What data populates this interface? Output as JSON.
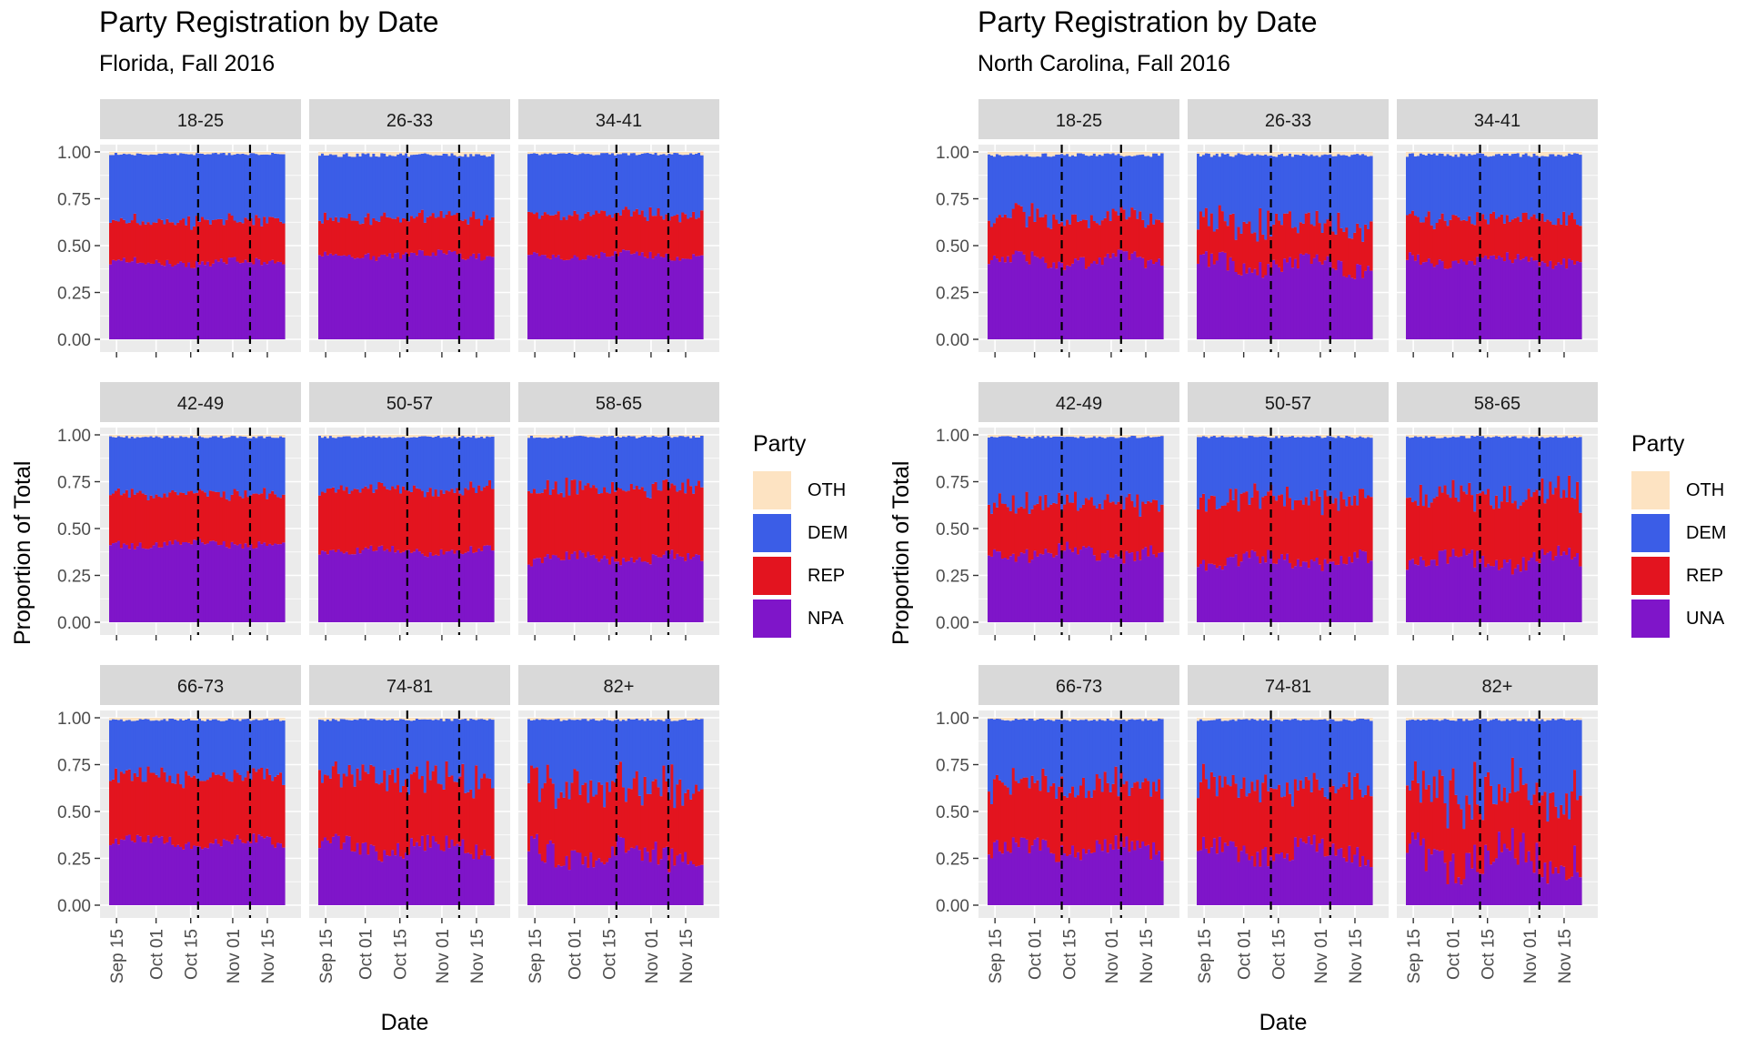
{
  "colors": {
    "OTH": "#fde3c2",
    "DEM": "#3b5de7",
    "REP": "#e3141f",
    "NPA": "#7f15c9",
    "UNA": "#7f15c9",
    "panel_bg": "#ebebeb",
    "strip_bg": "#d9d9d9",
    "grid": "#ffffff"
  },
  "chart_data": [
    {
      "type": "bar",
      "stacking": "fill",
      "title": "Party Registration by Date",
      "subtitle": "Florida, Fall 2016",
      "xlabel": "Date",
      "ylabel": "Proportion of Total",
      "ylim": [
        0,
        1
      ],
      "y_ticks": [
        "0.00",
        "0.25",
        "0.50",
        "0.75",
        "1.00"
      ],
      "x_ticks": [
        "Sep 15",
        "Oct 01",
        "Oct 15",
        "Nov 01",
        "Nov 15"
      ],
      "date_range": [
        "2016-09-12",
        "2016-11-22"
      ],
      "vlines": [
        "2016-10-18",
        "2016-11-08"
      ],
      "legend": {
        "title": "Party",
        "entries": [
          "OTH",
          "DEM",
          "REP",
          "NPA"
        ],
        "placement": "right"
      },
      "facets": [
        {
          "label": "18-25",
          "base": 0.41,
          "rep": 0.22,
          "oth": 0.01,
          "noise": 0.02
        },
        {
          "label": "26-33",
          "base": 0.45,
          "rep": 0.2,
          "oth": 0.015,
          "noise": 0.02
        },
        {
          "label": "34-41",
          "base": 0.45,
          "rep": 0.22,
          "oth": 0.01,
          "noise": 0.02
        },
        {
          "label": "42-49",
          "base": 0.42,
          "rep": 0.27,
          "oth": 0.01,
          "noise": 0.02
        },
        {
          "label": "50-57",
          "base": 0.38,
          "rep": 0.33,
          "oth": 0.01,
          "noise": 0.02
        },
        {
          "label": "58-65",
          "base": 0.34,
          "rep": 0.37,
          "oth": 0.01,
          "noise": 0.03
        },
        {
          "label": "66-73",
          "base": 0.34,
          "rep": 0.35,
          "oth": 0.01,
          "noise": 0.03
        },
        {
          "label": "74-81",
          "base": 0.31,
          "rep": 0.37,
          "oth": 0.01,
          "noise": 0.05
        },
        {
          "label": "82+",
          "base": 0.28,
          "rep": 0.36,
          "oth": 0.01,
          "noise": 0.07
        }
      ]
    },
    {
      "type": "bar",
      "stacking": "fill",
      "title": "Party Registration by Date",
      "subtitle": "North Carolina, Fall 2016",
      "xlabel": "Date",
      "ylabel": "Proportion of Total",
      "ylim": [
        0,
        1
      ],
      "y_ticks": [
        "0.00",
        "0.25",
        "0.50",
        "0.75",
        "1.00"
      ],
      "x_ticks": [
        "Sep 15",
        "Oct 01",
        "Oct 15",
        "Nov 01",
        "Nov 15"
      ],
      "date_range": [
        "2016-09-12",
        "2016-11-22"
      ],
      "vlines": [
        "2016-10-12",
        "2016-11-05"
      ],
      "legend": {
        "title": "Party",
        "entries": [
          "OTH",
          "DEM",
          "REP",
          "UNA"
        ],
        "placement": "right"
      },
      "facets": [
        {
          "label": "18-25",
          "base": 0.42,
          "rep": 0.22,
          "oth": 0.015,
          "noise": 0.04
        },
        {
          "label": "26-33",
          "base": 0.4,
          "rep": 0.22,
          "oth": 0.015,
          "noise": 0.05
        },
        {
          "label": "34-41",
          "base": 0.42,
          "rep": 0.22,
          "oth": 0.015,
          "noise": 0.03
        },
        {
          "label": "42-49",
          "base": 0.37,
          "rep": 0.27,
          "oth": 0.01,
          "noise": 0.04
        },
        {
          "label": "50-57",
          "base": 0.33,
          "rep": 0.33,
          "oth": 0.01,
          "noise": 0.04
        },
        {
          "label": "58-65",
          "base": 0.33,
          "rep": 0.34,
          "oth": 0.01,
          "noise": 0.05
        },
        {
          "label": "66-73",
          "base": 0.3,
          "rep": 0.34,
          "oth": 0.01,
          "noise": 0.05
        },
        {
          "label": "74-81",
          "base": 0.29,
          "rep": 0.35,
          "oth": 0.01,
          "noise": 0.06
        },
        {
          "label": "82+",
          "base": 0.26,
          "rep": 0.34,
          "oth": 0.01,
          "noise": 0.1
        }
      ]
    }
  ]
}
